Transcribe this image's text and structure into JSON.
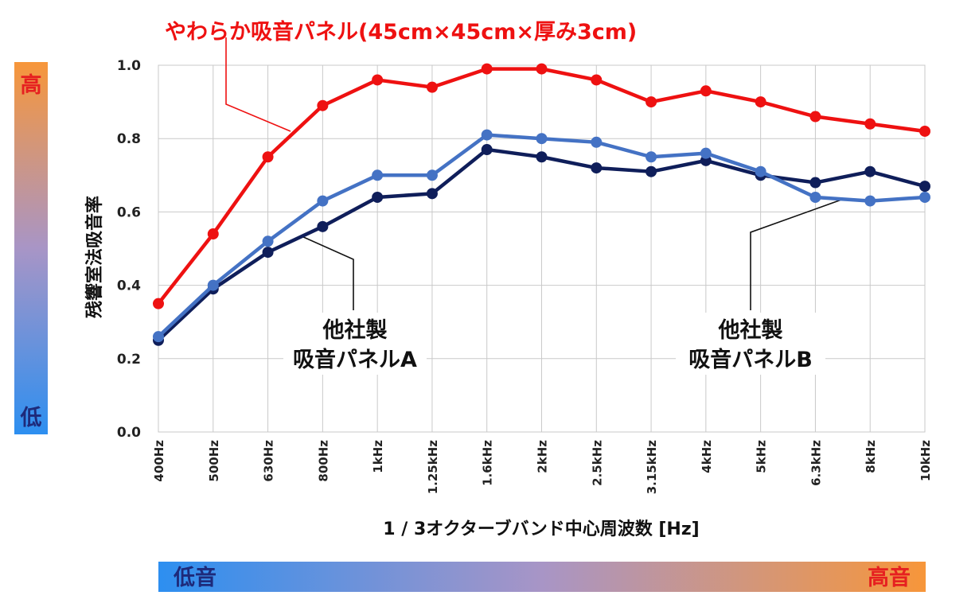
{
  "chart_data": {
    "type": "line",
    "title": "やわらか吸音パネル(45cm×45cm×厚み3cm)",
    "xlabel": "1 / 3オクターブバンド中心周波数 [Hz]",
    "ylabel": "残響室法吸音率",
    "ylim": [
      0.0,
      1.0
    ],
    "yticks": [
      "0.0",
      "0.2",
      "0.4",
      "0.6",
      "0.8",
      "1.0"
    ],
    "grid": true,
    "categories": [
      "400Hz",
      "500Hz",
      "630Hz",
      "800Hz",
      "1kHz",
      "1.25kHz",
      "1.6kHz",
      "2kHz",
      "2.5kHz",
      "3.15kHz",
      "4kHz",
      "5kHz",
      "6.3kHz",
      "8kHz",
      "10kHz"
    ],
    "series": [
      {
        "name": "やわらか吸音パネル(45cm×45cm×厚み3cm)",
        "color": "#ee1111",
        "values": [
          0.35,
          0.54,
          0.75,
          0.89,
          0.96,
          0.94,
          0.99,
          0.99,
          0.96,
          0.9,
          0.93,
          0.9,
          0.86,
          0.84,
          0.82
        ]
      },
      {
        "name": "他社製\n吸音パネルA",
        "color": "#0f1e5a",
        "values": [
          0.25,
          0.39,
          0.49,
          0.56,
          0.64,
          0.65,
          0.77,
          0.75,
          0.72,
          0.71,
          0.74,
          0.7,
          0.68,
          0.71,
          0.67
        ]
      },
      {
        "name": "他社製\n吸音パネルB",
        "color": "#4472c4",
        "values": [
          0.26,
          0.4,
          0.52,
          0.63,
          0.7,
          0.7,
          0.81,
          0.8,
          0.79,
          0.75,
          0.76,
          0.71,
          0.64,
          0.63,
          0.64
        ]
      }
    ],
    "callouts": {
      "a_line1": "他社製",
      "a_line2": "吸音パネルA",
      "b_line1": "他社製",
      "b_line2": "吸音パネルB"
    }
  },
  "scale_bars": {
    "vertical_high": "高",
    "vertical_low": "低",
    "horizontal_low": "低音",
    "horizontal_high": "高音",
    "color_low": "#2d8ff0",
    "color_mid": "#a895c6",
    "color_high": "#f7963a",
    "label_low_color": "#1e2a7a",
    "label_high_color": "#e62020"
  }
}
